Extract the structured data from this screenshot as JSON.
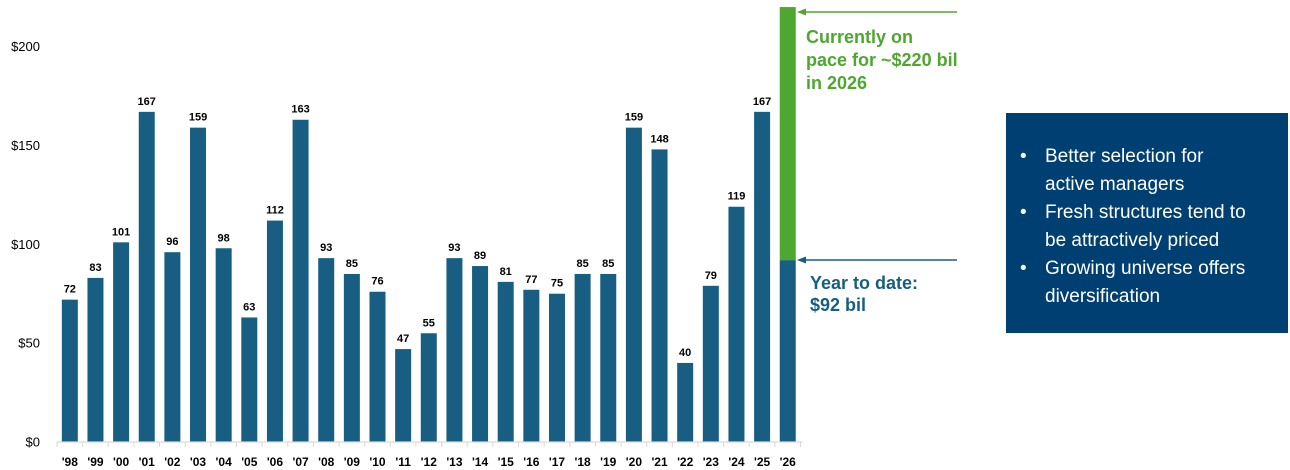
{
  "chart_data": {
    "type": "bar",
    "categories": [
      "'98",
      "'99",
      "'00",
      "'01",
      "'02",
      "'03",
      "'04",
      "'05",
      "'06",
      "'07",
      "'08",
      "'09",
      "'10",
      "'11",
      "'12",
      "'13",
      "'14",
      "'15",
      "'16",
      "'17",
      "'18",
      "'19",
      "'20",
      "'21",
      "'22",
      "'23",
      "'24",
      "'25",
      "'26"
    ],
    "values": [
      72,
      83,
      101,
      167,
      96,
      159,
      98,
      63,
      112,
      163,
      93,
      85,
      76,
      47,
      55,
      93,
      89,
      81,
      77,
      75,
      85,
      85,
      159,
      148,
      40,
      79,
      119,
      167,
      92
    ],
    "data_labels": [
      "72",
      "83",
      "101",
      "167",
      "96",
      "159",
      "98",
      "63",
      "112",
      "163",
      "93",
      "85",
      "76",
      "47",
      "55",
      "93",
      "89",
      "81",
      "77",
      "75",
      "85",
      "85",
      "159",
      "148",
      "40",
      "79",
      "119",
      "167",
      ""
    ],
    "projection": {
      "category": "'26",
      "year_to_date": 92,
      "projected_total": 220
    },
    "yticks": [
      0,
      50,
      100,
      150,
      200
    ],
    "ytick_labels": [
      "$0",
      "$50",
      "$100",
      "$150",
      "$200"
    ],
    "ylim": [
      0,
      220
    ],
    "grid": false,
    "legend": "none",
    "colors": {
      "bar": "#175e82",
      "projection": "#4ea72e",
      "ytd_annotation": "#175e82"
    },
    "annotations": {
      "projection_lines": [
        "Currently on",
        "pace for ~$220 bil",
        "in 2026"
      ],
      "ytd_lines": [
        "Year to date:",
        "$92 bil"
      ]
    }
  },
  "info_box": {
    "background": "#003f72",
    "bullet": "•",
    "items": [
      [
        "Better selection for",
        "active managers"
      ],
      [
        "Fresh structures tend to",
        "be attractively priced"
      ],
      [
        "Growing universe offers",
        "diversification"
      ]
    ]
  }
}
